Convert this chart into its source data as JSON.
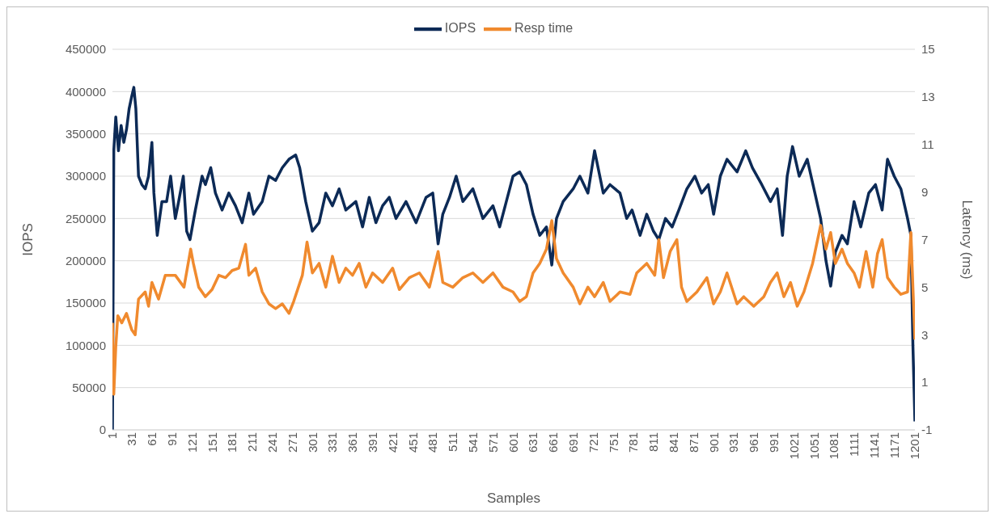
{
  "chart_data": {
    "type": "line",
    "xlabel": "Samples",
    "ylabel": "IOPS",
    "y2label": "Latency (ms)",
    "xlim": [
      1,
      1201
    ],
    "xticks": [
      1,
      31,
      61,
      91,
      121,
      151,
      181,
      211,
      241,
      271,
      301,
      331,
      361,
      391,
      421,
      451,
      481,
      511,
      541,
      571,
      601,
      631,
      661,
      691,
      721,
      751,
      781,
      811,
      841,
      871,
      901,
      931,
      961,
      991,
      1021,
      1051,
      1081,
      1111,
      1141,
      1171,
      1201
    ],
    "ylim": [
      0,
      450000
    ],
    "yticks": [
      0,
      50000,
      100000,
      150000,
      200000,
      250000,
      300000,
      350000,
      400000,
      450000
    ],
    "y2lim": [
      -1,
      15
    ],
    "y2ticks": [
      -1,
      1,
      3,
      5,
      7,
      9,
      11,
      13,
      15
    ],
    "grid": "y",
    "legend": "top",
    "marker": "none",
    "line_style": "solid",
    "series": [
      {
        "name": "IOPS",
        "color": "#0c2a56",
        "x": [
          1,
          3,
          6,
          10,
          14,
          18,
          22,
          26,
          30,
          33,
          36,
          40,
          45,
          50,
          55,
          60,
          63,
          68,
          75,
          82,
          88,
          95,
          100,
          107,
          112,
          117,
          125,
          135,
          140,
          148,
          155,
          165,
          175,
          185,
          195,
          205,
          212,
          225,
          235,
          245,
          255,
          265,
          275,
          281,
          290,
          300,
          310,
          320,
          330,
          340,
          350,
          365,
          375,
          385,
          395,
          405,
          415,
          425,
          440,
          455,
          470,
          480,
          488,
          495,
          505,
          515,
          525,
          540,
          555,
          570,
          580,
          590,
          600,
          610,
          620,
          630,
          640,
          650,
          658,
          665,
          675,
          690,
          700,
          712,
          722,
          735,
          745,
          760,
          770,
          778,
          790,
          800,
          810,
          818,
          828,
          838,
          848,
          860,
          872,
          882,
          892,
          900,
          910,
          920,
          935,
          948,
          958,
          972,
          985,
          995,
          1003,
          1010,
          1018,
          1028,
          1040,
          1050,
          1060,
          1068,
          1075,
          1082,
          1092,
          1100,
          1110,
          1120,
          1132,
          1142,
          1152,
          1160,
          1170,
          1180,
          1190,
          1195,
          1198,
          1201
        ],
        "values": [
          0,
          330000,
          370000,
          330000,
          360000,
          340000,
          355000,
          380000,
          395000,
          405000,
          380000,
          300000,
          290000,
          285000,
          300000,
          340000,
          280000,
          230000,
          270000,
          270000,
          300000,
          250000,
          270000,
          300000,
          235000,
          225000,
          260000,
          300000,
          290000,
          310000,
          280000,
          260000,
          280000,
          265000,
          245000,
          280000,
          255000,
          270000,
          300000,
          295000,
          310000,
          320000,
          325000,
          310000,
          270000,
          235000,
          245000,
          280000,
          265000,
          285000,
          260000,
          270000,
          240000,
          275000,
          245000,
          265000,
          275000,
          250000,
          270000,
          245000,
          275000,
          280000,
          220000,
          255000,
          275000,
          300000,
          270000,
          285000,
          250000,
          265000,
          240000,
          270000,
          300000,
          305000,
          290000,
          255000,
          230000,
          240000,
          195000,
          250000,
          270000,
          285000,
          300000,
          280000,
          330000,
          280000,
          290000,
          280000,
          250000,
          260000,
          230000,
          255000,
          235000,
          225000,
          250000,
          240000,
          260000,
          285000,
          300000,
          280000,
          290000,
          255000,
          300000,
          320000,
          305000,
          330000,
          310000,
          290000,
          270000,
          285000,
          230000,
          300000,
          335000,
          300000,
          320000,
          285000,
          250000,
          200000,
          170000,
          210000,
          230000,
          220000,
          270000,
          240000,
          280000,
          290000,
          260000,
          320000,
          300000,
          285000,
          250000,
          230000,
          100000,
          10000
        ]
      },
      {
        "name": "Resp time",
        "color": "#f08a2e",
        "axis": "y2",
        "x": [
          1,
          3,
          6,
          9,
          15,
          22,
          30,
          35,
          40,
          50,
          55,
          60,
          70,
          80,
          95,
          108,
          118,
          122,
          130,
          140,
          150,
          160,
          170,
          180,
          190,
          200,
          205,
          215,
          225,
          235,
          245,
          255,
          265,
          272,
          285,
          292,
          300,
          310,
          320,
          330,
          340,
          350,
          360,
          370,
          380,
          390,
          405,
          420,
          430,
          445,
          460,
          475,
          488,
          495,
          510,
          525,
          540,
          555,
          570,
          585,
          600,
          610,
          620,
          630,
          640,
          650,
          658,
          665,
          675,
          690,
          700,
          712,
          722,
          735,
          745,
          760,
          775,
          785,
          800,
          812,
          818,
          825,
          835,
          845,
          852,
          860,
          875,
          890,
          900,
          910,
          920,
          935,
          945,
          960,
          975,
          985,
          995,
          1005,
          1015,
          1025,
          1035,
          1048,
          1060,
          1068,
          1075,
          1082,
          1092,
          1100,
          1110,
          1118,
          1128,
          1138,
          1145,
          1152,
          1160,
          1170,
          1180,
          1190,
          1195,
          1198,
          1201
        ],
        "values": [
          3.5,
          0.5,
          2.5,
          3.8,
          3.5,
          3.9,
          3.2,
          3.0,
          4.5,
          4.8,
          4.2,
          5.2,
          4.5,
          5.5,
          5.5,
          5.0,
          6.6,
          6.0,
          5.0,
          4.6,
          4.9,
          5.5,
          5.4,
          5.7,
          5.8,
          6.8,
          5.5,
          5.8,
          4.8,
          4.3,
          4.1,
          4.3,
          3.9,
          4.4,
          5.5,
          6.9,
          5.6,
          6.0,
          5.0,
          6.3,
          5.2,
          5.8,
          5.5,
          6.0,
          5.0,
          5.6,
          5.2,
          5.8,
          4.9,
          5.4,
          5.6,
          5.0,
          6.5,
          5.2,
          5.0,
          5.4,
          5.6,
          5.2,
          5.6,
          5.0,
          4.8,
          4.4,
          4.6,
          5.6,
          6.0,
          6.6,
          7.8,
          6.2,
          5.6,
          5.0,
          4.3,
          5.0,
          4.6,
          5.2,
          4.4,
          4.8,
          4.7,
          5.6,
          6.0,
          5.5,
          7.0,
          5.4,
          6.5,
          7.0,
          5.0,
          4.4,
          4.8,
          5.4,
          4.3,
          4.8,
          5.6,
          4.3,
          4.6,
          4.2,
          4.6,
          5.2,
          5.6,
          4.6,
          5.2,
          4.2,
          4.8,
          6.0,
          7.6,
          6.6,
          7.3,
          6.0,
          6.6,
          6.0,
          5.6,
          5.0,
          6.5,
          5.0,
          6.4,
          7.0,
          5.4,
          5.0,
          4.7,
          4.8,
          7.3,
          5.0,
          2.8
        ]
      }
    ]
  }
}
